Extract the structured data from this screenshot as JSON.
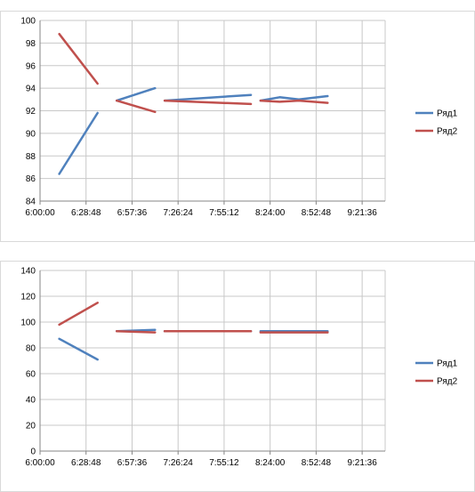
{
  "colors": {
    "series1": "#4f81bd",
    "series2": "#c0504d",
    "grid": "#c8c8c8",
    "axis": "#868686"
  },
  "chart_data": [
    {
      "type": "line",
      "x_type": "time",
      "xlim": [
        "6:00:00",
        "9:36:00"
      ],
      "xticks": [
        "6:00:00",
        "6:28:48",
        "6:57:36",
        "7:26:24",
        "7:55:12",
        "8:24:00",
        "8:52:48",
        "9:21:36"
      ],
      "ylim": [
        84,
        100
      ],
      "yticks": [
        84,
        86,
        88,
        90,
        92,
        94,
        96,
        98,
        100
      ],
      "grid": true,
      "legend_position": "right",
      "series": [
        {
          "name": "Ряд1",
          "color": "#4f81bd",
          "segments": [
            [
              [
                "6:12:00",
                86.4
              ],
              [
                "6:36:00",
                91.8
              ]
            ],
            [
              [
                "6:48:00",
                92.9
              ],
              [
                "7:12:00",
                94.0
              ]
            ],
            [
              [
                "7:18:00",
                92.9
              ],
              [
                "8:12:00",
                93.4
              ]
            ],
            [
              [
                "8:18:00",
                92.9
              ],
              [
                "8:30:00",
                93.2
              ],
              [
                "8:42:00",
                93.0
              ],
              [
                "9:00:00",
                93.3
              ]
            ]
          ]
        },
        {
          "name": "Ряд2",
          "color": "#c0504d",
          "segments": [
            [
              [
                "6:12:00",
                98.8
              ],
              [
                "6:36:00",
                94.4
              ]
            ],
            [
              [
                "6:48:00",
                92.9
              ],
              [
                "7:12:00",
                91.9
              ]
            ],
            [
              [
                "7:18:00",
                92.9
              ],
              [
                "8:12:00",
                92.6
              ]
            ],
            [
              [
                "8:18:00",
                92.9
              ],
              [
                "8:30:00",
                92.8
              ],
              [
                "8:42:00",
                92.9
              ],
              [
                "9:00:00",
                92.7
              ]
            ]
          ]
        }
      ]
    },
    {
      "type": "line",
      "x_type": "time",
      "xlim": [
        "6:00:00",
        "9:36:00"
      ],
      "xticks": [
        "6:00:00",
        "6:28:48",
        "6:57:36",
        "7:26:24",
        "7:55:12",
        "8:24:00",
        "8:52:48",
        "9:21:36"
      ],
      "ylim": [
        0,
        140
      ],
      "yticks": [
        0,
        20,
        40,
        60,
        80,
        100,
        120,
        140
      ],
      "grid": true,
      "legend_position": "right",
      "series": [
        {
          "name": "Ряд1",
          "color": "#4f81bd",
          "segments": [
            [
              [
                "6:12:00",
                87
              ],
              [
                "6:36:00",
                71
              ]
            ],
            [
              [
                "6:48:00",
                93
              ],
              [
                "7:12:00",
                94
              ]
            ],
            [
              [
                "7:18:00",
                93
              ],
              [
                "8:12:00",
                93
              ]
            ],
            [
              [
                "8:18:00",
                93
              ],
              [
                "9:00:00",
                93
              ]
            ]
          ]
        },
        {
          "name": "Ряд2",
          "color": "#c0504d",
          "segments": [
            [
              [
                "6:12:00",
                98
              ],
              [
                "6:36:00",
                115
              ]
            ],
            [
              [
                "6:48:00",
                93
              ],
              [
                "7:12:00",
                92
              ]
            ],
            [
              [
                "7:18:00",
                93
              ],
              [
                "8:12:00",
                93
              ]
            ],
            [
              [
                "8:18:00",
                92
              ],
              [
                "9:00:00",
                92
              ]
            ]
          ]
        }
      ]
    }
  ]
}
